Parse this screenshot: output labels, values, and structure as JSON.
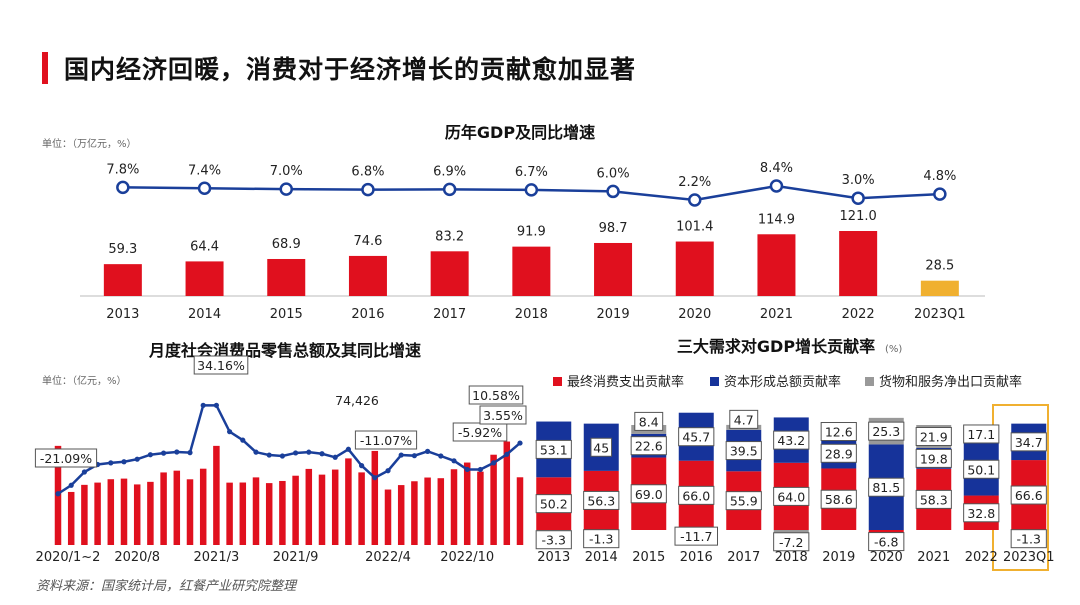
{
  "title": "国内经济回暖，消费对于经济增长的贡献愈加显著",
  "source": "资料来源：国家统计局，红餐产业研究院整理",
  "chart_data": [
    {
      "type": "bar",
      "title": "历年GDP及同比增速",
      "unit": "单位：（万亿元，%）",
      "categories": [
        "2013",
        "2014",
        "2015",
        "2016",
        "2017",
        "2018",
        "2019",
        "2020",
        "2021",
        "2022",
        "2023Q1"
      ],
      "gdp": [
        59.3,
        64.4,
        68.9,
        74.6,
        83.2,
        91.9,
        98.7,
        101.4,
        114.9,
        121.0,
        28.5
      ],
      "gdp_labels": [
        "59.3",
        "64.4",
        "68.9",
        "74.6",
        "83.2",
        "91.9",
        "98.7",
        "101.4",
        "114.9",
        "121.0",
        "28.5"
      ],
      "growth": [
        7.8,
        7.4,
        7.0,
        6.8,
        6.9,
        6.7,
        6.0,
        2.2,
        8.4,
        3.0,
        4.8
      ],
      "growth_labels": [
        "7.8%",
        "7.4%",
        "7.0%",
        "6.8%",
        "6.9%",
        "6.7%",
        "6.0%",
        "2.2%",
        "8.4%",
        "3.0%",
        "4.8%"
      ],
      "colors": {
        "bar": "#e0101e",
        "highlight": "#f0b030",
        "line": "#1a3f9a"
      }
    },
    {
      "type": "bar",
      "title": "月度社会消费品零售总额及其同比增速",
      "unit": "单位：（亿元，%）",
      "x_ticks": [
        "2020/1~2",
        "2020/8",
        "2021/3",
        "2021/9",
        "2022/4",
        "2022/10"
      ],
      "retail_approx": [
        52700,
        28200,
        31973,
        33175,
        34973,
        35295,
        32203,
        33571,
        38577,
        39515,
        34930,
        40566,
        52700,
        33153,
        33217,
        35945,
        32903,
        34040,
        36833,
        40454,
        37411,
        40104,
        46039,
        38600,
        50000,
        29483,
        31849,
        33886,
        35870,
        35514,
        40276,
        43833,
        38987,
        47999,
        55000,
        36000
      ],
      "growth_approx": [
        -21.09,
        -15.8,
        -7.5,
        -2.8,
        -1.8,
        -1.1,
        0.5,
        3.3,
        4.3,
        5.0,
        4.6,
        34.16,
        34.16,
        17.7,
        12.4,
        4.9,
        3.1,
        2.5,
        4.4,
        4.9,
        3.9,
        1.7,
        6.7,
        -3.5,
        -11.07,
        -6.7,
        3.1,
        2.7,
        5.4,
        2.5,
        -0.5,
        -5.9,
        -5.92,
        -1.8,
        3.55,
        10.58
      ],
      "annotations": [
        "-21.09%",
        "34.16%",
        "74,426",
        "-11.07%",
        "-5.92%",
        "10.58%",
        "3.55%"
      ],
      "colors": {
        "bar": "#e0101e",
        "line": "#1a3f9a"
      }
    },
    {
      "type": "bar",
      "stacked": true,
      "title": "三大需求对GDP增长贡献率",
      "title_unit": "(%)",
      "categories": [
        "2013",
        "2014",
        "2015",
        "2016",
        "2017",
        "2018",
        "2019",
        "2020",
        "2021",
        "2022",
        "2023Q1"
      ],
      "series": [
        {
          "name": "最终消费支出贡献率",
          "color": "#e0101e",
          "values": [
            50.2,
            56.3,
            69.0,
            66.0,
            55.9,
            64.0,
            58.6,
            -6.8,
            58.3,
            32.8,
            66.6
          ]
        },
        {
          "name": "资本形成总额贡献率",
          "color": "#16339a",
          "values": [
            53.1,
            45,
            22.6,
            45.7,
            39.5,
            43.2,
            28.9,
            81.5,
            19.8,
            50.1,
            34.7
          ]
        },
        {
          "name": "货物和服务净出口贡献率",
          "color": "#999999",
          "values": [
            -3.3,
            -1.3,
            8.4,
            -11.7,
            4.7,
            -7.2,
            12.6,
            25.3,
            21.9,
            17.1,
            -1.3
          ]
        }
      ],
      "box_labels": [
        [
          "50.2",
          "53.1",
          "-3.3"
        ],
        [
          "56.3",
          "45",
          "-1.3"
        ],
        [
          "69.0",
          "22.6",
          "8.4"
        ],
        [
          "66.0",
          "45.7",
          "-11.7"
        ],
        [
          "55.9",
          "39.5",
          "4.7"
        ],
        [
          "64.0",
          "43.2",
          "-7.2"
        ],
        [
          "58.6",
          "28.9",
          "12.6"
        ],
        [
          "-6.8",
          "81.5",
          "25.3"
        ],
        [
          "58.3",
          "19.8",
          "21.9"
        ],
        [
          "32.8",
          "50.1",
          "17.1"
        ],
        [
          "66.6",
          "34.7",
          "-1.3"
        ]
      ]
    }
  ]
}
